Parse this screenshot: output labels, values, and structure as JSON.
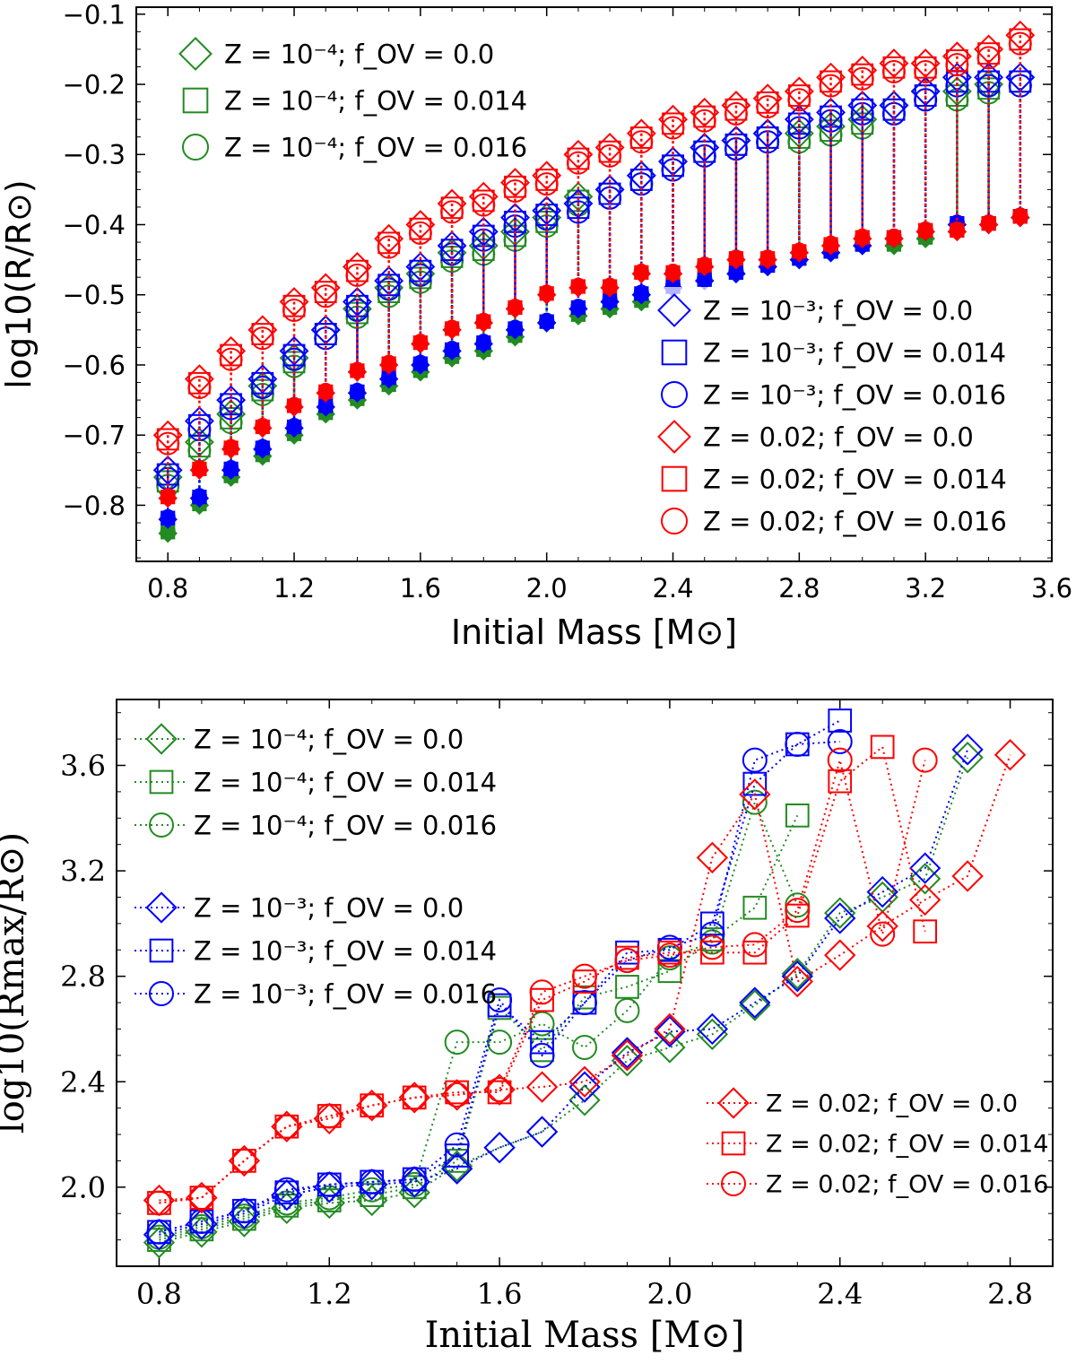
{
  "chart_data": [
    {
      "type": "scatter",
      "panel": "top",
      "xlabel": "Initial Mass [M⊙]",
      "ylabel": "log10(R/R⊙)",
      "xlim": [
        0.7,
        3.6
      ],
      "ylim": [
        -0.88,
        -0.09
      ],
      "xticks": [
        0.8,
        1.2,
        1.6,
        2.0,
        2.4,
        2.8,
        3.2,
        3.6
      ],
      "yticks": [
        -0.8,
        -0.7,
        -0.6,
        -0.5,
        -0.4,
        -0.3,
        -0.2,
        -0.1
      ],
      "xtick_labels": [
        "0.8",
        "1.2",
        "1.6",
        "2.0",
        "2.4",
        "2.8",
        "3.2",
        "3.6"
      ],
      "ytick_labels": [
        "−0.8",
        "−0.7",
        "−0.6",
        "−0.5",
        "−0.4",
        "−0.3",
        "−0.2",
        "−0.1"
      ],
      "note": "Open markers: upper radius; filled markers: lower radius, joined by vertical lines",
      "legend_top_left": [
        {
          "label_z": "Z = 10⁻⁴",
          "label_f": "f_OV = 0.0",
          "color": "#228b22",
          "marker": "diamond"
        },
        {
          "label_z": "Z = 10⁻⁴",
          "label_f": "f_OV = 0.014",
          "color": "#228b22",
          "marker": "square"
        },
        {
          "label_z": "Z = 10⁻⁴",
          "label_f": "f_OV = 0.016",
          "color": "#228b22",
          "marker": "circle"
        }
      ],
      "legend_bottom_right": [
        {
          "label_z": "Z = 10⁻³",
          "label_f": "f_OV = 0.0",
          "color": "#0000ff",
          "marker": "diamond"
        },
        {
          "label_z": "Z = 10⁻³",
          "label_f": "f_OV = 0.014",
          "color": "#0000ff",
          "marker": "square"
        },
        {
          "label_z": "Z = 10⁻³",
          "label_f": "f_OV = 0.016",
          "color": "#0000ff",
          "marker": "circle"
        },
        {
          "label_z": "Z = 0.02",
          "label_f": "f_OV = 0.0",
          "color": "#ff0000",
          "marker": "diamond"
        },
        {
          "label_z": "Z = 0.02",
          "label_f": "f_OV = 0.014",
          "color": "#ff0000",
          "marker": "square"
        },
        {
          "label_z": "Z = 0.02",
          "label_f": "f_OV = 0.016",
          "color": "#ff0000",
          "marker": "circle"
        }
      ],
      "x": [
        0.8,
        0.9,
        1.0,
        1.1,
        1.2,
        1.3,
        1.4,
        1.5,
        1.6,
        1.7,
        1.8,
        1.9,
        2.0,
        2.1,
        2.2,
        2.3,
        2.4,
        2.5,
        2.6,
        2.7,
        2.8,
        2.9,
        3.0,
        3.1,
        3.2,
        3.3,
        3.4,
        3.5
      ],
      "series": [
        {
          "name": "Z=1e-4",
          "color": "#228b22",
          "upper": [
            -0.76,
            -0.71,
            -0.67,
            -0.63,
            -0.59,
            -0.55,
            -0.52,
            -0.49,
            -0.47,
            -0.44,
            -0.43,
            -0.41,
            -0.39,
            -0.36,
            -0.35,
            -0.33,
            -0.31,
            -0.29,
            -0.28,
            -0.27,
            -0.27,
            -0.26,
            -0.25,
            -0.23,
            -0.21,
            -0.21,
            -0.2,
            -0.19
          ],
          "lower": [
            -0.84,
            -0.8,
            -0.76,
            -0.73,
            -0.7,
            -0.67,
            -0.65,
            -0.63,
            -0.61,
            -0.59,
            -0.58,
            -0.56,
            -0.54,
            -0.53,
            -0.52,
            -0.51,
            -0.49,
            -0.48,
            -0.47,
            -0.46,
            -0.45,
            -0.44,
            -0.43,
            -0.43,
            -0.42,
            -0.41,
            -0.4,
            -0.39
          ]
        },
        {
          "name": "Z=1e-3",
          "color": "#0000ff",
          "upper": [
            -0.75,
            -0.68,
            -0.65,
            -0.62,
            -0.58,
            -0.55,
            -0.51,
            -0.48,
            -0.46,
            -0.43,
            -0.41,
            -0.39,
            -0.38,
            -0.37,
            -0.35,
            -0.33,
            -0.31,
            -0.29,
            -0.28,
            -0.27,
            -0.25,
            -0.24,
            -0.23,
            -0.23,
            -0.21,
            -0.19,
            -0.19,
            -0.19
          ],
          "lower": [
            -0.82,
            -0.79,
            -0.75,
            -0.72,
            -0.69,
            -0.66,
            -0.64,
            -0.62,
            -0.6,
            -0.58,
            -0.57,
            -0.55,
            -0.54,
            -0.52,
            -0.51,
            -0.5,
            -0.49,
            -0.48,
            -0.47,
            -0.46,
            -0.45,
            -0.44,
            -0.43,
            -0.42,
            -0.41,
            -0.4,
            -0.4,
            -0.39
          ]
        },
        {
          "name": "Z=0.02",
          "color": "#ff0000",
          "upper": [
            -0.7,
            -0.62,
            -0.58,
            -0.55,
            -0.51,
            -0.49,
            -0.46,
            -0.42,
            -0.4,
            -0.37,
            -0.36,
            -0.34,
            -0.33,
            -0.3,
            -0.29,
            -0.27,
            -0.25,
            -0.24,
            -0.23,
            -0.22,
            -0.21,
            -0.19,
            -0.18,
            -0.17,
            -0.17,
            -0.16,
            -0.15,
            -0.13
          ],
          "lower": [
            -0.79,
            -0.75,
            -0.72,
            -0.69,
            -0.66,
            -0.64,
            -0.61,
            -0.6,
            -0.57,
            -0.55,
            -0.54,
            -0.52,
            -0.5,
            -0.49,
            -0.49,
            -0.47,
            -0.47,
            -0.46,
            -0.45,
            -0.45,
            -0.44,
            -0.43,
            -0.42,
            -0.42,
            -0.41,
            -0.41,
            -0.4,
            -0.39
          ]
        }
      ]
    },
    {
      "type": "line",
      "panel": "bottom",
      "xlabel": "Initial Mass [M⊙]",
      "ylabel": "log10(Rmax/R⊙)",
      "xlim": [
        0.7,
        2.9
      ],
      "ylim": [
        1.7,
        3.85
      ],
      "xticks": [
        0.8,
        1.2,
        1.6,
        2.0,
        2.4,
        2.8
      ],
      "yticks": [
        2.0,
        2.4,
        2.8,
        3.2,
        3.6
      ],
      "xtick_labels": [
        "0.8",
        "1.2",
        "1.6",
        "2.0",
        "2.4",
        "2.8"
      ],
      "ytick_labels": [
        "2.0",
        "2.4",
        "2.8",
        "3.2",
        "3.6"
      ],
      "legend_top_left": [
        {
          "label_z": "Z = 10⁻⁴",
          "label_f": "f_OV = 0.0",
          "color": "#228b22",
          "marker": "diamond"
        },
        {
          "label_z": "Z = 10⁻⁴",
          "label_f": "f_OV = 0.014",
          "color": "#228b22",
          "marker": "square"
        },
        {
          "label_z": "Z = 10⁻⁴",
          "label_f": "f_OV = 0.016",
          "color": "#228b22",
          "marker": "circle"
        },
        {
          "label_z": "Z = 10⁻³",
          "label_f": "f_OV = 0.0",
          "color": "#0000ff",
          "marker": "diamond"
        },
        {
          "label_z": "Z = 10⁻³",
          "label_f": "f_OV = 0.014",
          "color": "#0000ff",
          "marker": "square"
        },
        {
          "label_z": "Z = 10⁻³",
          "label_f": "f_OV = 0.016",
          "color": "#0000ff",
          "marker": "circle"
        }
      ],
      "legend_bottom_right": [
        {
          "label_z": "Z = 0.02",
          "label_f": "f_OV = 0.0",
          "color": "#ff0000",
          "marker": "diamond"
        },
        {
          "label_z": "Z = 0.02",
          "label_f": "f_OV = 0.014",
          "color": "#ff0000",
          "marker": "square"
        },
        {
          "label_z": "Z = 0.02",
          "label_f": "f_OV = 0.016",
          "color": "#ff0000",
          "marker": "circle"
        }
      ],
      "series": [
        {
          "name": "Z=1e-4 fOV=0.0",
          "color": "#228b22",
          "marker": "diamond",
          "x": [
            0.8,
            0.9,
            1.0,
            1.1,
            1.2,
            1.3,
            1.4,
            1.5,
            1.6,
            1.7,
            1.8,
            1.9,
            2.0,
            2.1,
            2.2,
            2.3,
            2.4,
            2.5,
            2.6,
            2.7
          ],
          "y": [
            1.79,
            1.83,
            1.87,
            1.92,
            1.94,
            1.95,
            1.98,
            2.08,
            2.15,
            2.21,
            2.33,
            2.48,
            2.53,
            2.58,
            2.69,
            2.81,
            3.04,
            3.1,
            3.17,
            3.63
          ]
        },
        {
          "name": "Z=1e-4 fOV=0.014",
          "color": "#228b22",
          "marker": "square",
          "x": [
            0.8,
            0.9,
            1.0,
            1.1,
            1.2,
            1.3,
            1.4,
            1.5,
            1.6,
            1.7,
            1.8,
            1.9,
            2.0,
            2.1,
            2.2,
            2.3
          ],
          "y": [
            1.8,
            1.84,
            1.88,
            1.93,
            1.95,
            1.97,
            2.0,
            2.1,
            2.68,
            2.52,
            2.72,
            2.76,
            2.82,
            2.94,
            3.06,
            3.41
          ]
        },
        {
          "name": "Z=1e-4 fOV=0.016",
          "color": "#228b22",
          "marker": "circle",
          "x": [
            0.8,
            0.9,
            1.0,
            1.1,
            1.2,
            1.3,
            1.4,
            1.5,
            1.6,
            1.7,
            1.8,
            1.9,
            2.0,
            2.1,
            2.2,
            2.3
          ],
          "y": [
            1.81,
            1.85,
            1.89,
            1.94,
            1.96,
            1.99,
            2.01,
            2.55,
            2.55,
            2.62,
            2.53,
            2.67,
            2.87,
            2.93,
            3.46,
            3.07
          ]
        },
        {
          "name": "Z=1e-3 fOV=0.0",
          "color": "#0000ff",
          "marker": "diamond",
          "x": [
            0.8,
            0.9,
            1.0,
            1.1,
            1.2,
            1.3,
            1.4,
            1.5,
            1.6,
            1.7,
            1.8,
            1.9,
            2.0,
            2.1,
            2.2,
            2.3,
            2.4,
            2.5,
            2.6,
            2.7
          ],
          "y": [
            1.82,
            1.86,
            1.9,
            1.97,
            2.0,
            2.01,
            2.02,
            2.07,
            2.15,
            2.21,
            2.38,
            2.51,
            2.59,
            2.6,
            2.7,
            2.8,
            3.02,
            3.12,
            3.21,
            3.66
          ]
        },
        {
          "name": "Z=1e-3 fOV=0.014",
          "color": "#0000ff",
          "marker": "square",
          "x": [
            0.8,
            0.9,
            1.0,
            1.1,
            1.2,
            1.3,
            1.4,
            1.5,
            1.6,
            1.7,
            1.8,
            1.9,
            2.0,
            2.1,
            2.2,
            2.3,
            2.4
          ],
          "y": [
            1.83,
            1.87,
            1.91,
            1.98,
            2.01,
            2.02,
            2.03,
            2.12,
            2.69,
            2.55,
            2.7,
            2.89,
            2.9,
            3.0,
            3.53,
            3.68,
            3.77
          ]
        },
        {
          "name": "Z=1e-3 fOV=0.016",
          "color": "#0000ff",
          "marker": "circle",
          "x": [
            0.8,
            0.9,
            1.0,
            1.1,
            1.2,
            1.3,
            1.4,
            1.5,
            1.6,
            1.7,
            1.8,
            1.9,
            2.0,
            2.1,
            2.2,
            2.3,
            2.4
          ],
          "y": [
            1.83,
            1.87,
            1.91,
            1.99,
            2.01,
            2.02,
            2.03,
            2.16,
            2.71,
            2.5,
            2.7,
            2.86,
            2.91,
            2.96,
            3.62,
            3.68,
            3.69
          ]
        },
        {
          "name": "Z=0.02 fOV=0.0",
          "color": "#ff0000",
          "marker": "diamond",
          "x": [
            0.8,
            0.9,
            1.0,
            1.1,
            1.2,
            1.3,
            1.4,
            1.5,
            1.6,
            1.7,
            1.8,
            1.9,
            2.0,
            2.1,
            2.2,
            2.3,
            2.4,
            2.5,
            2.6,
            2.7,
            2.8
          ],
          "y": [
            1.95,
            1.96,
            2.1,
            2.23,
            2.26,
            2.31,
            2.34,
            2.35,
            2.37,
            2.38,
            2.4,
            2.5,
            2.6,
            3.25,
            3.49,
            2.78,
            2.88,
            2.99,
            3.09,
            3.18,
            3.64
          ]
        },
        {
          "name": "Z=0.02 fOV=0.014",
          "color": "#ff0000",
          "marker": "square",
          "x": [
            0.8,
            0.9,
            1.0,
            1.1,
            1.2,
            1.3,
            1.4,
            1.5,
            1.6,
            1.7,
            1.8,
            1.9,
            2.0,
            2.1,
            2.2,
            2.3,
            2.4,
            2.5,
            2.6
          ],
          "y": [
            1.94,
            1.96,
            2.1,
            2.23,
            2.27,
            2.31,
            2.34,
            2.36,
            2.36,
            2.71,
            2.78,
            2.87,
            2.89,
            2.89,
            2.89,
            3.03,
            3.54,
            3.67,
            2.97
          ]
        },
        {
          "name": "Z=0.02 fOV=0.016",
          "color": "#ff0000",
          "marker": "circle",
          "x": [
            0.8,
            0.9,
            1.0,
            1.1,
            1.2,
            1.3,
            1.4,
            1.5,
            1.6,
            1.7,
            1.8,
            1.9,
            2.0,
            2.1,
            2.2,
            2.3,
            2.4,
            2.5,
            2.6
          ],
          "y": [
            1.94,
            1.96,
            2.1,
            2.23,
            2.27,
            2.31,
            2.34,
            2.35,
            2.37,
            2.74,
            2.8,
            2.86,
            2.88,
            2.91,
            2.92,
            3.05,
            3.62,
            2.96,
            3.62
          ]
        }
      ]
    }
  ]
}
